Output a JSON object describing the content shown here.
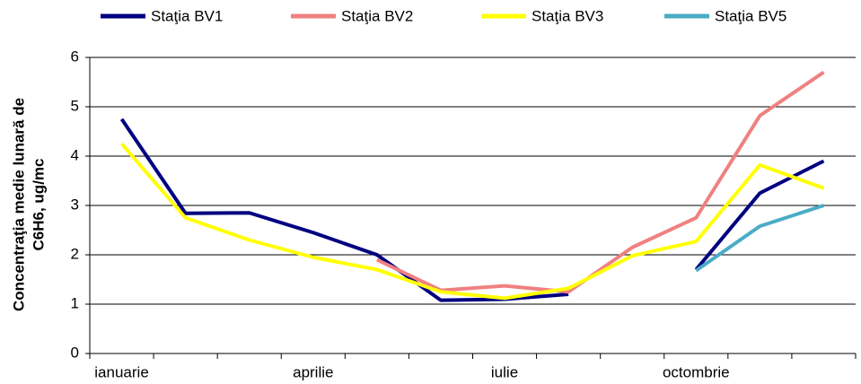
{
  "chart_data": {
    "type": "line",
    "y_label": [
      "Concentraţia medie  lunară de",
      "C6H6, ug/mc"
    ],
    "categories": [
      "ianuarie",
      null,
      null,
      "aprilie",
      null,
      null,
      "iulie",
      null,
      null,
      "octombrie",
      null,
      null
    ],
    "series": [
      {
        "name": "Staţia BV1",
        "color": "#000080",
        "values": [
          4.75,
          2.84,
          2.85,
          2.45,
          2.0,
          1.08,
          1.1,
          1.2,
          null,
          1.7,
          3.25,
          3.9
        ]
      },
      {
        "name": "Staţia BV2",
        "color": "#f08080",
        "values": [
          null,
          null,
          null,
          null,
          1.9,
          1.28,
          1.37,
          1.25,
          2.15,
          2.75,
          4.82,
          5.7
        ]
      },
      {
        "name": "Staţia BV3",
        "color": "#ffff00",
        "values": [
          4.25,
          2.75,
          2.3,
          1.95,
          1.7,
          1.25,
          1.12,
          1.32,
          1.98,
          2.27,
          3.82,
          3.35
        ]
      },
      {
        "name": "Staţia BV5",
        "color": "#4bacc6",
        "values": [
          null,
          null,
          null,
          null,
          null,
          null,
          null,
          null,
          null,
          1.68,
          2.58,
          3.0
        ]
      }
    ],
    "ylim": [
      0,
      6
    ],
    "yticks": [
      0,
      1,
      2,
      3,
      4,
      5,
      6
    ],
    "grid": true
  }
}
